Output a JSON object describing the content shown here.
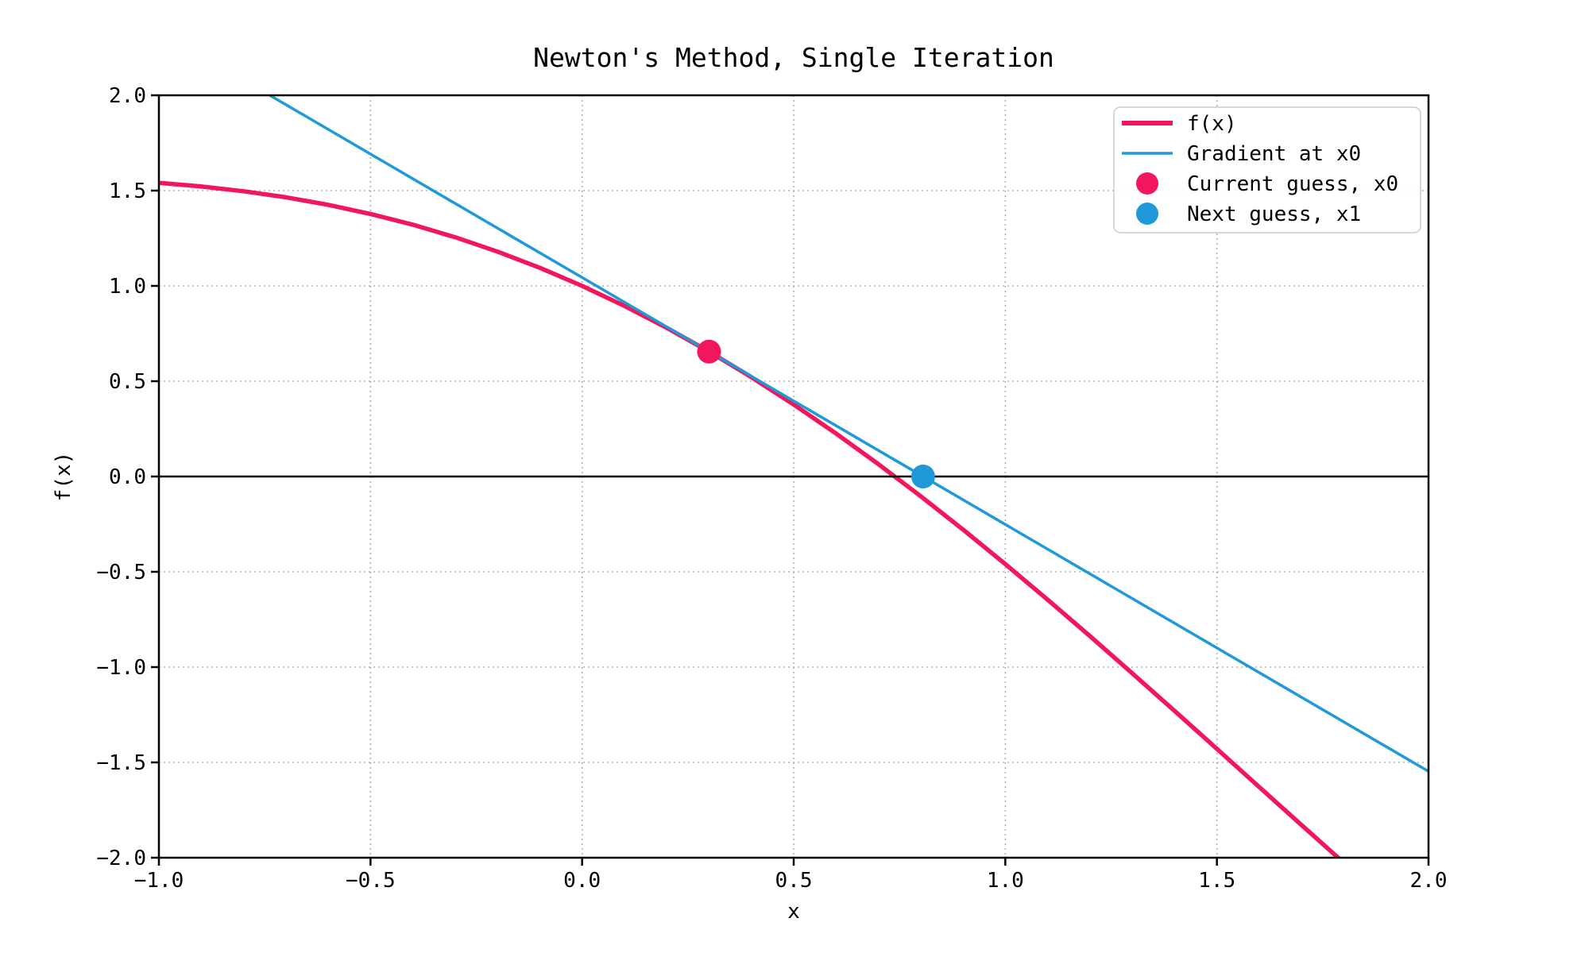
{
  "figure": {
    "background": "#ffffff"
  },
  "chart_data": {
    "type": "line",
    "title": "Newton's Method, Single Iteration",
    "xlabel": "x",
    "ylabel": "f(x)",
    "xlim": [
      -1.0,
      2.0
    ],
    "ylim": [
      -2.0,
      2.0
    ],
    "grid": "dotted",
    "grid_color": "#b0b0b0",
    "legend_position": "upper right",
    "xticks": {
      "values": [
        -1.0,
        -0.5,
        0.0,
        0.5,
        1.0,
        1.5,
        2.0
      ],
      "labels": [
        "−1.0",
        "−0.5",
        "0.0",
        "0.5",
        "1.0",
        "1.5",
        "2.0"
      ]
    },
    "yticks": {
      "values": [
        -2.0,
        -1.5,
        -1.0,
        -0.5,
        0.0,
        0.5,
        1.0,
        1.5,
        2.0
      ],
      "labels": [
        "−2.0",
        "−1.5",
        "−1.0",
        "−0.5",
        "0.0",
        "0.5",
        "1.0",
        "1.5",
        "2.0"
      ]
    },
    "series": [
      {
        "name": "f(x)",
        "color": "#f2175c",
        "x": [
          -1.0,
          -0.9,
          -0.8,
          -0.7,
          -0.6,
          -0.5,
          -0.4,
          -0.3,
          -0.2,
          -0.1,
          0.0,
          0.1,
          0.2,
          0.3,
          0.4,
          0.5,
          0.6,
          0.7,
          0.8,
          0.9,
          1.0,
          1.1,
          1.2,
          1.3,
          1.4,
          1.5,
          1.6,
          1.7,
          1.8,
          1.9,
          2.0
        ],
        "y": [
          1.5403,
          1.5216,
          1.4967,
          1.4648,
          1.4253,
          1.3776,
          1.3211,
          1.2553,
          1.1801,
          1.095,
          1.0,
          0.895,
          0.7801,
          0.6553,
          0.5211,
          0.3776,
          0.2253,
          0.0648,
          -0.1033,
          -0.2784,
          -0.4597,
          -0.6464,
          -0.8376,
          -1.0325,
          -1.23,
          -1.4293,
          -1.6292,
          -1.8288,
          -2.0272,
          -2.2233,
          -2.4161
        ]
      },
      {
        "name": "Gradient at x0",
        "color": "#2099d8",
        "x": [
          -1.0,
          2.0
        ],
        "y": [
          2.3395,
          -1.547
        ]
      }
    ],
    "points": [
      {
        "name": "Current guess, x0",
        "color": "#f2175c",
        "x": 0.3,
        "y": 0.6553
      },
      {
        "name": "Next guess, x1",
        "color": "#2099d8",
        "x": 0.8058,
        "y": 0.0
      }
    ],
    "zero_line": {
      "y": 0.0,
      "color": "#000000"
    }
  }
}
